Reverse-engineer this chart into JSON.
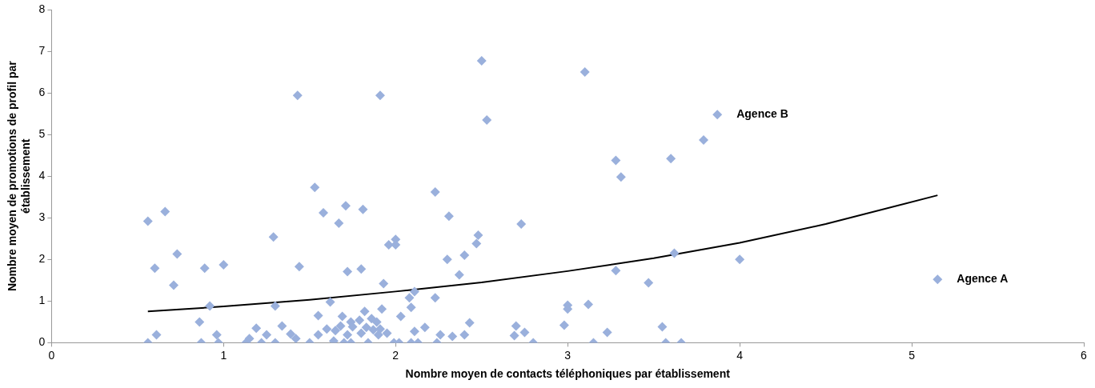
{
  "chart_data": {
    "type": "scatter",
    "xlabel": "Nombre moyen de contacts téléphoniques par établissement",
    "ylabel": "Nombre moyen de promotions de profil par établissement",
    "xlim": [
      0,
      6
    ],
    "xticks": [
      0,
      1,
      2,
      3,
      4,
      5,
      6
    ],
    "ylim": [
      0,
      8
    ],
    "yticks": [
      0,
      1,
      2,
      3,
      4,
      5,
      6,
      7,
      8
    ],
    "grid": false,
    "marker": "diamond",
    "series": [
      {
        "color": "#9ab0dc",
        "x": [
          0.56,
          0.56,
          0.6,
          0.61,
          0.66,
          0.71,
          0.73,
          0.86,
          0.87,
          0.89,
          0.92,
          0.96,
          0.97,
          1.0,
          1.13,
          1.15,
          1.19,
          1.22,
          1.25,
          1.29,
          1.3,
          1.3,
          1.34,
          1.39,
          1.42,
          1.43,
          1.44,
          1.5,
          1.53,
          1.55,
          1.55,
          1.58,
          1.6,
          1.62,
          1.64,
          1.65,
          1.67,
          1.68,
          1.69,
          1.7,
          1.71,
          1.72,
          1.72,
          1.74,
          1.74,
          1.75,
          1.79,
          1.8,
          1.8,
          1.81,
          1.82,
          1.83,
          1.84,
          1.86,
          1.87,
          1.89,
          1.9,
          1.91,
          1.91,
          1.92,
          1.93,
          1.95,
          1.96,
          1.99,
          2.0,
          2.0,
          2.02,
          2.03,
          2.08,
          2.09,
          2.09,
          2.11,
          2.11,
          2.13,
          2.17,
          2.23,
          2.23,
          2.24,
          2.26,
          2.3,
          2.31,
          2.33,
          2.37,
          2.4,
          2.4,
          2.43,
          2.47,
          2.48,
          2.5,
          2.53,
          2.69,
          2.7,
          2.73,
          2.75,
          2.8,
          2.98,
          3.0,
          3.0,
          3.1,
          3.12,
          3.15,
          3.23,
          3.28,
          3.28,
          3.31,
          3.47,
          3.55,
          3.57,
          3.6,
          3.62,
          3.66,
          3.79,
          3.87,
          4.0,
          5.15
        ],
        "values": [
          0,
          2.92,
          1.79,
          0.19,
          3.15,
          1.38,
          2.13,
          0.5,
          0,
          1.79,
          0.88,
          0.19,
          0,
          1.87,
          0,
          0.1,
          0.35,
          0,
          0.19,
          2.54,
          0.88,
          0,
          0.4,
          0.21,
          0.1,
          5.94,
          1.83,
          0,
          3.73,
          0.65,
          0.19,
          3.12,
          0.33,
          0.98,
          0.04,
          0.29,
          2.87,
          0.4,
          0.63,
          0,
          3.29,
          1.71,
          0.19,
          0.5,
          0,
          0.38,
          0.54,
          1.77,
          0.23,
          3.2,
          0.75,
          0.37,
          0,
          0.58,
          0.31,
          0.5,
          0.19,
          5.94,
          0.33,
          0.81,
          1.42,
          0.23,
          2.35,
          0,
          2.48,
          2.35,
          0,
          0.63,
          1.08,
          0.85,
          0,
          1.23,
          0.27,
          0,
          0.37,
          3.62,
          1.08,
          0,
          0.19,
          2.0,
          3.04,
          0.15,
          1.63,
          2.1,
          0.19,
          0.48,
          2.38,
          2.58,
          6.77,
          5.35,
          0.17,
          0.4,
          2.85,
          0.25,
          0,
          0.42,
          0.9,
          0.81,
          6.5,
          0.92,
          0,
          0.25,
          4.38,
          1.73,
          3.98,
          1.44,
          0.38,
          0,
          4.42,
          2.15,
          0,
          4.87,
          5.48,
          2.0,
          1.52
        ]
      },
      {
        "type": "line",
        "color": "#000000",
        "marker": "none",
        "x": [
          0.56,
          1,
          1.5,
          2,
          2.5,
          3,
          3.5,
          4,
          4.5,
          5.15
        ],
        "values": [
          0.75,
          0.87,
          1.03,
          1.23,
          1.45,
          1.72,
          2.03,
          2.4,
          2.85,
          3.54
        ]
      }
    ],
    "annotations": [
      {
        "text": "Agence B",
        "x": 3.87,
        "y": 5.48
      },
      {
        "text": "Agence A",
        "x": 5.15,
        "y": 1.52
      }
    ]
  }
}
